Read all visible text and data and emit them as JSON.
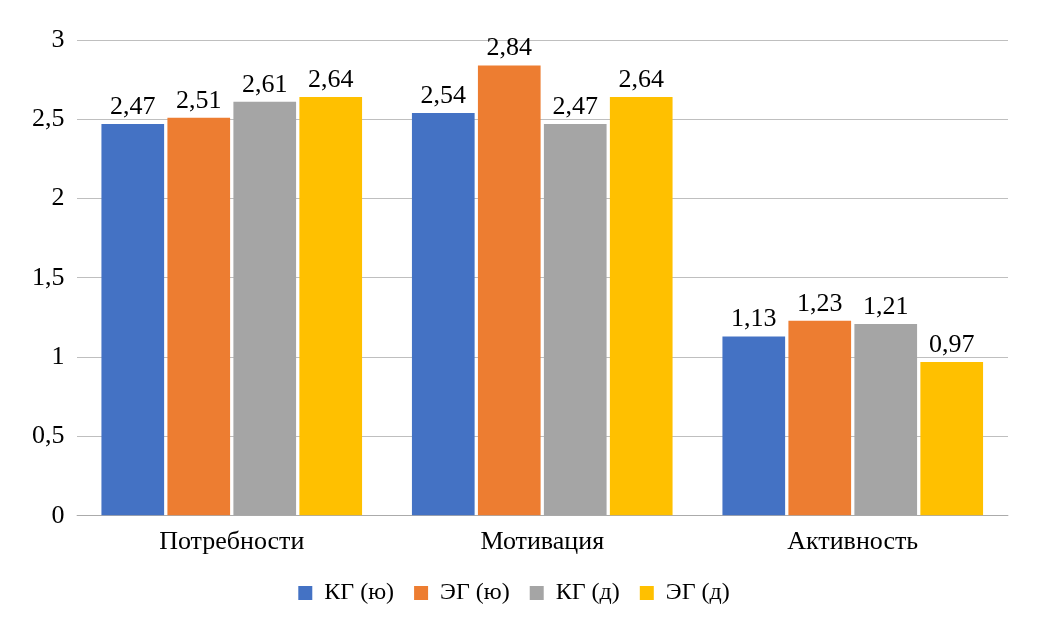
{
  "chart_data": {
    "type": "bar",
    "categories": [
      "Потребности",
      "Мотивация",
      "Активность"
    ],
    "series": [
      {
        "name": "КГ (ю)",
        "color": "#4472c4",
        "values": [
          2.47,
          2.54,
          1.13
        ],
        "value_labels": [
          "2,47",
          "2,54",
          "1,13"
        ]
      },
      {
        "name": "ЭГ (ю)",
        "color": "#ed7d31",
        "values": [
          2.51,
          2.84,
          1.23
        ],
        "value_labels": [
          "2,51",
          "2,84",
          "1,23"
        ]
      },
      {
        "name": "КГ (д)",
        "color": "#a5a5a5",
        "values": [
          2.61,
          2.47,
          1.21
        ],
        "value_labels": [
          "2,61",
          "2,47",
          "1,21"
        ]
      },
      {
        "name": "ЭГ (д)",
        "color": "#ffc000",
        "values": [
          2.64,
          2.64,
          0.97
        ],
        "value_labels": [
          "2,64",
          "2,64",
          "0,97"
        ]
      }
    ],
    "ylim": [
      0,
      3
    ],
    "yticks": [
      0,
      {
        "value": 0.5,
        "label": "0,5"
      },
      1,
      {
        "value": 1.5,
        "label": "1,5"
      },
      2,
      {
        "value": 2.5,
        "label": "2,5"
      },
      3
    ],
    "grid": "y",
    "legend": "bottom"
  }
}
